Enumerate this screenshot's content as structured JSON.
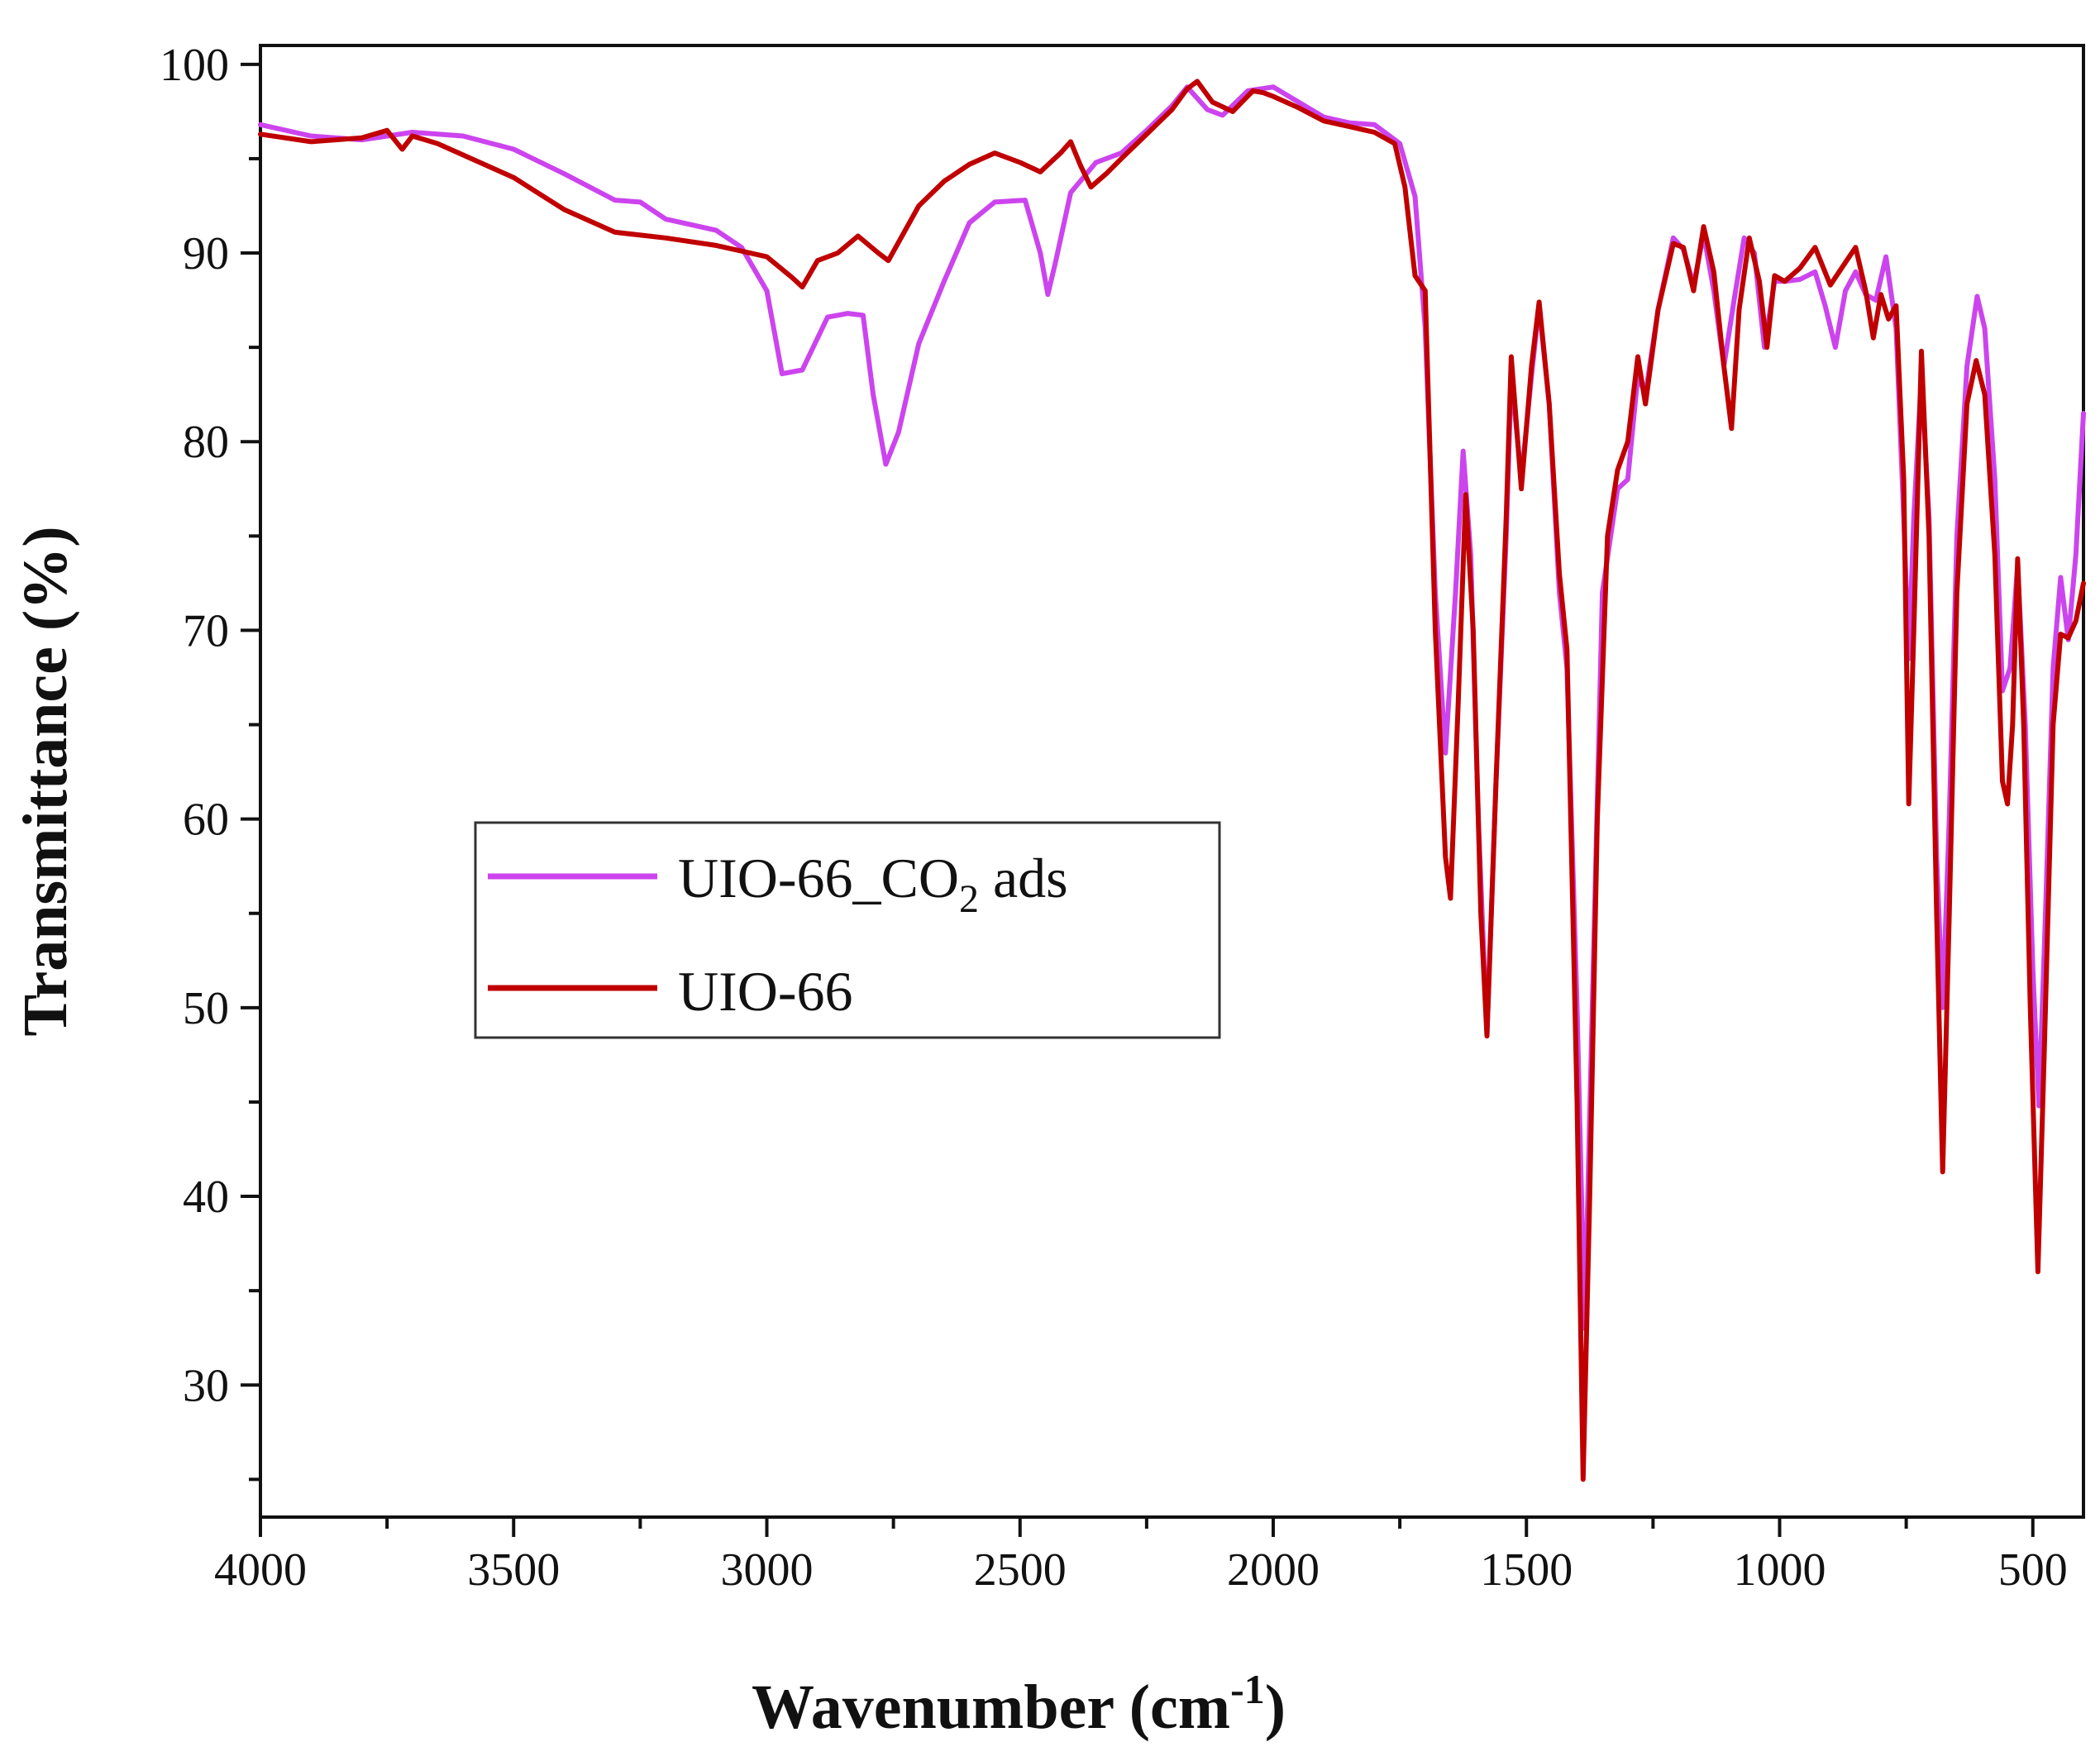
{
  "chart_data": {
    "type": "line",
    "xlabel": "Wavenumber (cm",
    "xlabel_sup": "-1",
    "xlabel_close": ")",
    "ylabel": "Transmittance (%)",
    "xlim": [
      4000,
      400
    ],
    "ylim": [
      23,
      101
    ],
    "x_ticks": [
      4000,
      3500,
      3000,
      2500,
      2000,
      1500,
      1000,
      500
    ],
    "x_tick_labels": [
      "4000",
      "3500",
      "3000",
      "2500",
      "2000",
      "1500",
      "1000",
      "500"
    ],
    "y_ticks": [
      30,
      40,
      50,
      60,
      70,
      80,
      90,
      100
    ],
    "y_tick_labels": [
      "30",
      "40",
      "50",
      "60",
      "70",
      "80",
      "90",
      "100"
    ],
    "legend_position": "center-left",
    "series": [
      {
        "name": "UIO-66_CO2 ads",
        "legend_main": "UIO-66_CO",
        "legend_sub": "2",
        "legend_suffix": " ads",
        "color": "#cc44ee",
        "points": [
          [
            4000,
            96.8
          ],
          [
            3900,
            96.2
          ],
          [
            3800,
            96.0
          ],
          [
            3700,
            96.4
          ],
          [
            3600,
            96.2
          ],
          [
            3500,
            95.5
          ],
          [
            3400,
            94.2
          ],
          [
            3300,
            92.8
          ],
          [
            3250,
            92.7
          ],
          [
            3200,
            91.8
          ],
          [
            3100,
            91.2
          ],
          [
            3050,
            90.3
          ],
          [
            3000,
            88.0
          ],
          [
            2970,
            83.6
          ],
          [
            2930,
            83.8
          ],
          [
            2880,
            86.6
          ],
          [
            2840,
            86.8
          ],
          [
            2810,
            86.7
          ],
          [
            2790,
            82.5
          ],
          [
            2765,
            78.8
          ],
          [
            2740,
            80.5
          ],
          [
            2700,
            85.2
          ],
          [
            2650,
            88.5
          ],
          [
            2600,
            91.6
          ],
          [
            2550,
            92.7
          ],
          [
            2490,
            92.8
          ],
          [
            2460,
            90.0
          ],
          [
            2445,
            87.8
          ],
          [
            2430,
            89.5
          ],
          [
            2400,
            93.2
          ],
          [
            2350,
            94.8
          ],
          [
            2300,
            95.3
          ],
          [
            2250,
            96.5
          ],
          [
            2200,
            97.8
          ],
          [
            2170,
            98.8
          ],
          [
            2130,
            97.6
          ],
          [
            2100,
            97.3
          ],
          [
            2050,
            98.6
          ],
          [
            2000,
            98.8
          ],
          [
            1950,
            98.0
          ],
          [
            1900,
            97.2
          ],
          [
            1850,
            96.9
          ],
          [
            1800,
            96.8
          ],
          [
            1750,
            95.8
          ],
          [
            1720,
            93.0
          ],
          [
            1700,
            86.0
          ],
          [
            1680,
            72.0
          ],
          [
            1660,
            63.5
          ],
          [
            1640,
            72.0
          ],
          [
            1625,
            79.5
          ],
          [
            1610,
            74.0
          ],
          [
            1595,
            60.0
          ],
          [
            1578,
            48.6
          ],
          [
            1560,
            62.0
          ],
          [
            1540,
            75.0
          ],
          [
            1530,
            83.5
          ],
          [
            1510,
            78.0
          ],
          [
            1490,
            83.5
          ],
          [
            1475,
            87.2
          ],
          [
            1455,
            82.0
          ],
          [
            1435,
            72.0
          ],
          [
            1420,
            68.0
          ],
          [
            1400,
            50.0
          ],
          [
            1385,
            33.0
          ],
          [
            1370,
            50.0
          ],
          [
            1350,
            72.0
          ],
          [
            1320,
            77.5
          ],
          [
            1300,
            78.0
          ],
          [
            1280,
            83.5
          ],
          [
            1265,
            82.5
          ],
          [
            1240,
            87.0
          ],
          [
            1210,
            90.8
          ],
          [
            1190,
            90.2
          ],
          [
            1170,
            88.3
          ],
          [
            1150,
            91.0
          ],
          [
            1130,
            88.0
          ],
          [
            1110,
            84.0
          ],
          [
            1090,
            87.5
          ],
          [
            1070,
            90.8
          ],
          [
            1050,
            90.0
          ],
          [
            1030,
            85.0
          ],
          [
            1010,
            88.5
          ],
          [
            990,
            88.5
          ],
          [
            960,
            88.6
          ],
          [
            930,
            89.0
          ],
          [
            910,
            87.2
          ],
          [
            890,
            85.0
          ],
          [
            870,
            88.0
          ],
          [
            850,
            89.0
          ],
          [
            830,
            87.8
          ],
          [
            810,
            87.5
          ],
          [
            790,
            89.8
          ],
          [
            770,
            86.0
          ],
          [
            755,
            76.0
          ],
          [
            745,
            68.5
          ],
          [
            735,
            76.0
          ],
          [
            720,
            83.5
          ],
          [
            705,
            76.0
          ],
          [
            690,
            58.0
          ],
          [
            678,
            50.0
          ],
          [
            665,
            60.0
          ],
          [
            650,
            75.0
          ],
          [
            630,
            84.0
          ],
          [
            610,
            87.7
          ],
          [
            595,
            86.0
          ],
          [
            575,
            78.0
          ],
          [
            560,
            66.8
          ],
          [
            545,
            68.0
          ],
          [
            530,
            73.5
          ],
          [
            515,
            65.0
          ],
          [
            500,
            52.0
          ],
          [
            488,
            44.8
          ],
          [
            475,
            55.0
          ],
          [
            460,
            68.0
          ],
          [
            445,
            72.8
          ],
          [
            430,
            69.5
          ],
          [
            415,
            74.0
          ],
          [
            400,
            81.5
          ]
        ]
      },
      {
        "name": "UIO-66",
        "legend_main": "UIO-66",
        "legend_sub": "",
        "legend_suffix": "",
        "color": "#c00000",
        "points": [
          [
            4000,
            96.3
          ],
          [
            3900,
            95.9
          ],
          [
            3800,
            96.1
          ],
          [
            3750,
            96.5
          ],
          [
            3720,
            95.5
          ],
          [
            3700,
            96.2
          ],
          [
            3650,
            95.8
          ],
          [
            3600,
            95.2
          ],
          [
            3500,
            94.0
          ],
          [
            3400,
            92.3
          ],
          [
            3300,
            91.1
          ],
          [
            3200,
            90.8
          ],
          [
            3100,
            90.4
          ],
          [
            3000,
            89.8
          ],
          [
            2950,
            88.7
          ],
          [
            2930,
            88.2
          ],
          [
            2900,
            89.6
          ],
          [
            2860,
            90.0
          ],
          [
            2820,
            90.9
          ],
          [
            2780,
            90.0
          ],
          [
            2760,
            89.6
          ],
          [
            2700,
            92.5
          ],
          [
            2650,
            93.8
          ],
          [
            2600,
            94.7
          ],
          [
            2550,
            95.3
          ],
          [
            2500,
            94.8
          ],
          [
            2460,
            94.3
          ],
          [
            2420,
            95.3
          ],
          [
            2400,
            95.9
          ],
          [
            2380,
            94.6
          ],
          [
            2360,
            93.5
          ],
          [
            2330,
            94.2
          ],
          [
            2300,
            95.0
          ],
          [
            2250,
            96.3
          ],
          [
            2200,
            97.6
          ],
          [
            2170,
            98.7
          ],
          [
            2150,
            99.1
          ],
          [
            2120,
            98.0
          ],
          [
            2080,
            97.5
          ],
          [
            2040,
            98.6
          ],
          [
            2020,
            98.5
          ],
          [
            2000,
            98.3
          ],
          [
            1950,
            97.7
          ],
          [
            1900,
            97.0
          ],
          [
            1850,
            96.7
          ],
          [
            1800,
            96.4
          ],
          [
            1760,
            95.8
          ],
          [
            1740,
            93.5
          ],
          [
            1720,
            88.8
          ],
          [
            1700,
            88.0
          ],
          [
            1680,
            70.0
          ],
          [
            1660,
            58.0
          ],
          [
            1650,
            55.8
          ],
          [
            1635,
            66.0
          ],
          [
            1620,
            77.2
          ],
          [
            1605,
            70.0
          ],
          [
            1590,
            55.0
          ],
          [
            1578,
            48.5
          ],
          [
            1560,
            62.0
          ],
          [
            1540,
            76.0
          ],
          [
            1530,
            84.5
          ],
          [
            1510,
            77.5
          ],
          [
            1490,
            84.0
          ],
          [
            1475,
            87.4
          ],
          [
            1455,
            82.0
          ],
          [
            1435,
            73.0
          ],
          [
            1420,
            69.0
          ],
          [
            1400,
            45.0
          ],
          [
            1388,
            25.0
          ],
          [
            1375,
            40.0
          ],
          [
            1360,
            60.0
          ],
          [
            1340,
            75.0
          ],
          [
            1320,
            78.5
          ],
          [
            1300,
            80.0
          ],
          [
            1280,
            84.5
          ],
          [
            1265,
            82.0
          ],
          [
            1240,
            87.0
          ],
          [
            1210,
            90.5
          ],
          [
            1190,
            90.3
          ],
          [
            1170,
            88.0
          ],
          [
            1150,
            91.4
          ],
          [
            1130,
            89.0
          ],
          [
            1110,
            84.0
          ],
          [
            1095,
            80.7
          ],
          [
            1080,
            87.0
          ],
          [
            1060,
            90.8
          ],
          [
            1040,
            88.5
          ],
          [
            1025,
            85.0
          ],
          [
            1010,
            88.8
          ],
          [
            990,
            88.5
          ],
          [
            960,
            89.2
          ],
          [
            930,
            90.3
          ],
          [
            900,
            88.3
          ],
          [
            870,
            89.5
          ],
          [
            850,
            90.3
          ],
          [
            830,
            88.0
          ],
          [
            815,
            85.5
          ],
          [
            800,
            87.8
          ],
          [
            785,
            86.5
          ],
          [
            770,
            87.2
          ],
          [
            755,
            78.0
          ],
          [
            745,
            60.8
          ],
          [
            735,
            70.0
          ],
          [
            720,
            84.8
          ],
          [
            705,
            75.0
          ],
          [
            690,
            55.0
          ],
          [
            678,
            41.3
          ],
          [
            665,
            55.0
          ],
          [
            650,
            72.0
          ],
          [
            630,
            82.0
          ],
          [
            612,
            84.3
          ],
          [
            595,
            82.5
          ],
          [
            575,
            74.0
          ],
          [
            560,
            62.0
          ],
          [
            550,
            60.8
          ],
          [
            540,
            65.0
          ],
          [
            530,
            73.8
          ],
          [
            518,
            65.0
          ],
          [
            505,
            50.0
          ],
          [
            490,
            36.0
          ],
          [
            477,
            48.0
          ],
          [
            460,
            65.0
          ],
          [
            445,
            69.8
          ],
          [
            430,
            69.6
          ],
          [
            415,
            70.5
          ],
          [
            400,
            72.5
          ]
        ]
      }
    ]
  }
}
